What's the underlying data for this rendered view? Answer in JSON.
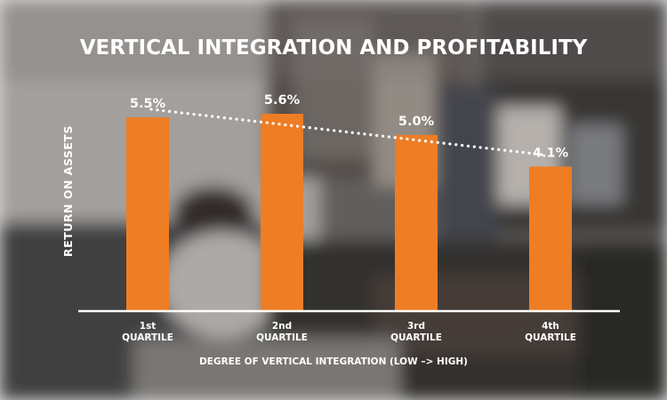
{
  "chart_data": {
    "type": "bar",
    "title": "VERTICAL INTEGRATION AND PROFITABILITY",
    "xlabel": "DEGREE OF VERTICAL INTEGRATION (LOW –> HIGH)",
    "ylabel": "RETURN ON ASSETS",
    "categories": [
      [
        "1st",
        "QUARTILE"
      ],
      [
        "2nd",
        "QUARTILE"
      ],
      [
        "3rd",
        "QUARTILE"
      ],
      [
        "4th",
        "QUARTILE"
      ]
    ],
    "values": [
      5.5,
      5.6,
      5.0,
      4.1
    ],
    "value_labels": [
      "5.5%",
      "5.6%",
      "5.0%",
      "4.1%"
    ],
    "unit": "%",
    "ylim": [
      0,
      6.2
    ],
    "grid": false,
    "trendline": "dotted",
    "bar_color": "#ee7d24",
    "text_color": "#ffffff"
  }
}
